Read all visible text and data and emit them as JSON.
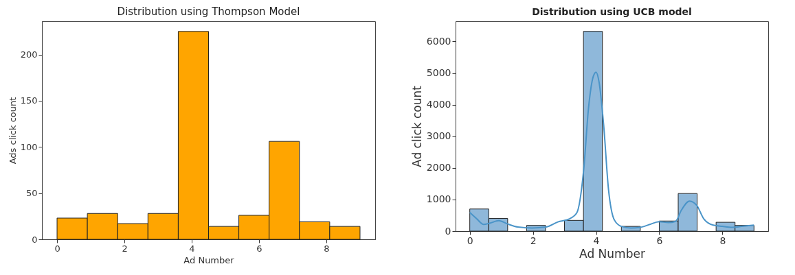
{
  "chart_data": [
    {
      "type": "histogram",
      "title": "Distribution using Thompson Model",
      "xlabel": "Ad Number",
      "ylabel": "Ads click count",
      "color": "#ffa500",
      "bins": [
        0,
        0.9,
        1.8,
        2.7,
        3.6,
        4.5,
        5.4,
        6.3,
        7.2,
        8.1,
        9
      ],
      "values": [
        23,
        28,
        17,
        28,
        225,
        14,
        26,
        106,
        19,
        14
      ],
      "xlim": [
        -0.45,
        9.45
      ],
      "xticks": [
        0,
        2,
        4,
        6,
        8
      ],
      "ylim": [
        0,
        236
      ],
      "yticks": [
        0,
        50,
        100,
        150,
        200
      ],
      "grid": false
    },
    {
      "type": "histogram",
      "title": "Distribution using UCB model",
      "xlabel": "Ad Number",
      "ylabel": "Ad click count",
      "bins": [
        0,
        0.6,
        1.2,
        1.8,
        2.4,
        3,
        3.6,
        4.2,
        4.8,
        5.4,
        6,
        6.6,
        7.2,
        7.8,
        8.4,
        9
      ],
      "series": [
        {
          "type": "histogram",
          "color": "#8fb8da",
          "values": [
            700,
            400,
            0,
            180,
            0,
            340,
            6320,
            0,
            150,
            0,
            320,
            1190,
            0,
            280,
            180
          ]
        },
        {
          "type": "line",
          "color": "#4a94c8",
          "x": [
            0,
            0.22,
            0.44,
            0.63,
            0.92,
            1.19,
            1.52,
            1.97,
            2.42,
            2.79,
            3.16,
            3.39,
            3.61,
            3.76,
            3.91,
            4,
            4.09,
            4.24,
            4.39,
            4.58,
            4.8,
            5.1,
            5.4,
            5.7,
            6,
            6.29,
            6.52,
            6.7,
            6.96,
            7.19,
            7.41,
            7.71,
            8,
            8.31,
            8.61,
            9
          ],
          "values": [
            590,
            390,
            210,
            250,
            330,
            230,
            130,
            100,
            130,
            290,
            390,
            580,
            1970,
            3890,
            4890,
            5030,
            4740,
            3350,
            1350,
            350,
            150,
            100,
            120,
            210,
            300,
            270,
            310,
            660,
            950,
            810,
            390,
            190,
            150,
            120,
            150,
            190
          ]
        }
      ],
      "xlim": [
        -0.45,
        9.45
      ],
      "xticks": [
        0,
        2,
        4,
        6,
        8
      ],
      "ylim": [
        0,
        6640
      ],
      "yticks": [
        0,
        1000,
        2000,
        3000,
        4000,
        5000,
        6000
      ],
      "grid": false
    }
  ]
}
